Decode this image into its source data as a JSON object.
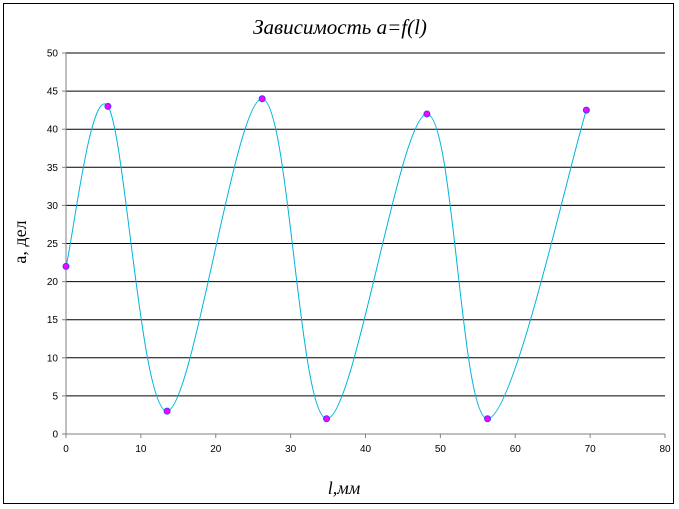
{
  "chart_data": {
    "type": "scatter",
    "title": "Зависимость a=f(l)",
    "xlabel": "l,мм",
    "ylabel": "а, дел",
    "xlim": [
      0,
      80
    ],
    "ylim": [
      0,
      50
    ],
    "x_ticks": [
      "0",
      "10",
      "20",
      "30",
      "40",
      "50",
      "60",
      "70",
      "80"
    ],
    "y_ticks": [
      "0",
      "5",
      "10",
      "15",
      "20",
      "25",
      "30",
      "35",
      "40",
      "45",
      "50"
    ],
    "grid": "horizontal",
    "smoothed_line": true,
    "series": [
      {
        "x": [
          0,
          5.6,
          13.5,
          26.2,
          34.8,
          48.2,
          56.3,
          69.5
        ],
        "y": [
          22,
          43,
          3,
          44,
          2,
          42,
          2,
          42.5
        ]
      }
    ],
    "colors": {
      "line": "#00b4dc",
      "marker_fill": "#ff00ff",
      "marker_edge": "#4040ff",
      "grid": "#000000",
      "axis": "#808080"
    }
  }
}
